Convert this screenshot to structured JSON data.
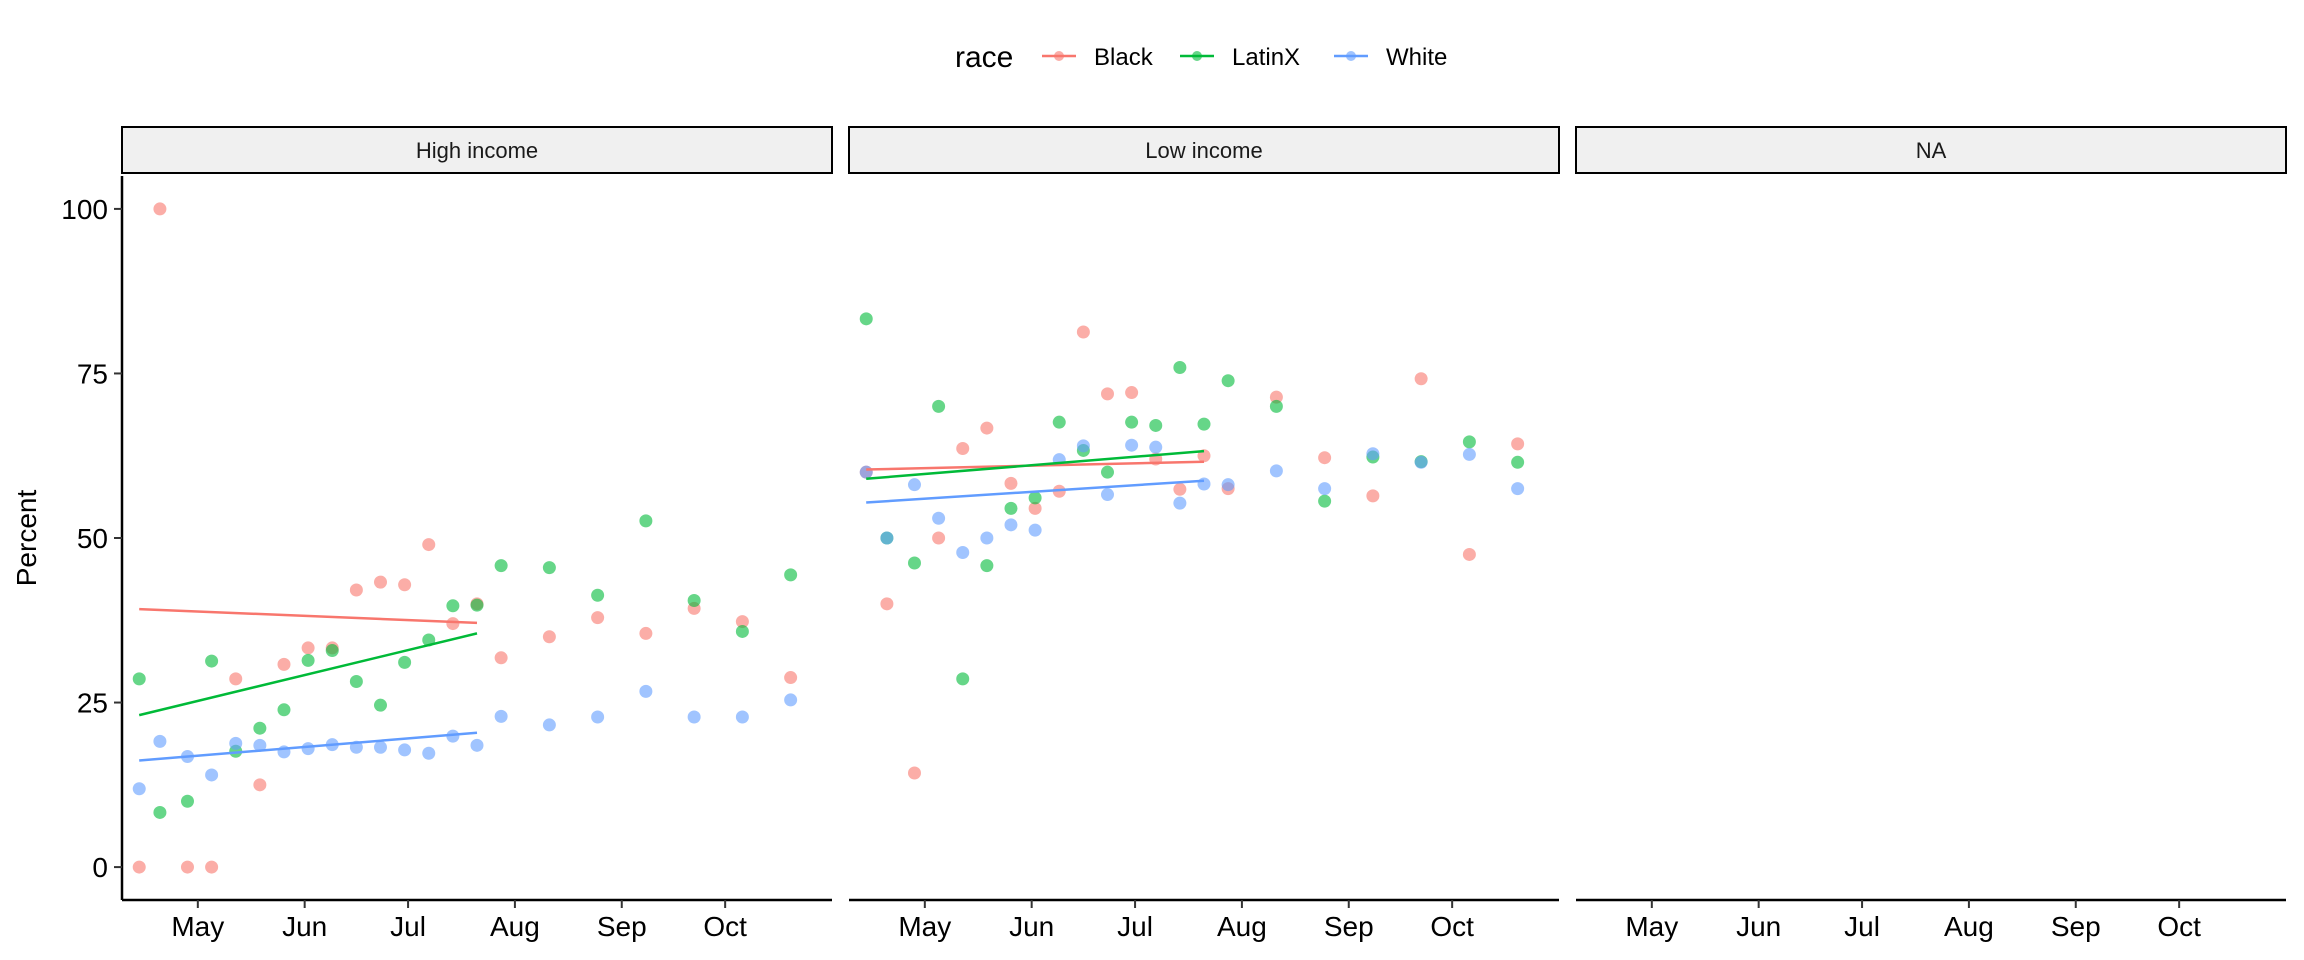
{
  "chart_data": {
    "type": "scatter",
    "legend": {
      "title": "race",
      "position": "top"
    },
    "y_label": "Percent",
    "y_ticks": [
      0,
      25,
      50,
      75,
      100
    ],
    "y_range": [
      -5,
      105
    ],
    "x_ticks": [
      "May",
      "Jun",
      "Jul",
      "Aug",
      "Sep",
      "Oct"
    ],
    "x_tick_dates": [
      "2020-05-01",
      "2020-06-01",
      "2020-07-01",
      "2020-08-01",
      "2020-09-01",
      "2020-10-01"
    ],
    "x_range": [
      "2020-04-09",
      "2020-11-01"
    ],
    "grid": false,
    "series": [
      {
        "name": "Black",
        "color": "#F8766D"
      },
      {
        "name": "LatinX",
        "color": "#00BA38"
      },
      {
        "name": "White",
        "color": "#619CFF"
      }
    ],
    "panels": [
      {
        "label": "High income",
        "points": {
          "Black": [
            {
              "x": "2020-04-14",
              "y": 0
            },
            {
              "x": "2020-04-20",
              "y": 100
            },
            {
              "x": "2020-04-28",
              "y": 0
            },
            {
              "x": "2020-05-05",
              "y": 0
            },
            {
              "x": "2020-05-12",
              "y": 28.6
            },
            {
              "x": "2020-05-19",
              "y": 12.5
            },
            {
              "x": "2020-05-26",
              "y": 30.8
            },
            {
              "x": "2020-06-02",
              "y": 33.3
            },
            {
              "x": "2020-06-09",
              "y": 33.3
            },
            {
              "x": "2020-06-16",
              "y": 42.1
            },
            {
              "x": "2020-06-23",
              "y": 43.3
            },
            {
              "x": "2020-06-30",
              "y": 42.9
            },
            {
              "x": "2020-07-07",
              "y": 49.0
            },
            {
              "x": "2020-07-14",
              "y": 37.0
            },
            {
              "x": "2020-07-21",
              "y": 40.0
            },
            {
              "x": "2020-07-28",
              "y": 31.8
            },
            {
              "x": "2020-08-11",
              "y": 35.0
            },
            {
              "x": "2020-08-25",
              "y": 37.9
            },
            {
              "x": "2020-09-08",
              "y": 35.5
            },
            {
              "x": "2020-09-22",
              "y": 39.3
            },
            {
              "x": "2020-10-06",
              "y": 37.3
            },
            {
              "x": "2020-10-20",
              "y": 28.8
            }
          ],
          "LatinX": [
            {
              "x": "2020-04-14",
              "y": 28.6
            },
            {
              "x": "2020-04-20",
              "y": 8.3
            },
            {
              "x": "2020-04-28",
              "y": 10.0
            },
            {
              "x": "2020-05-05",
              "y": 31.3
            },
            {
              "x": "2020-05-12",
              "y": 17.6
            },
            {
              "x": "2020-05-19",
              "y": 21.1
            },
            {
              "x": "2020-05-26",
              "y": 23.9
            },
            {
              "x": "2020-06-02",
              "y": 31.4
            },
            {
              "x": "2020-06-09",
              "y": 32.9
            },
            {
              "x": "2020-06-16",
              "y": 28.2
            },
            {
              "x": "2020-06-23",
              "y": 24.6
            },
            {
              "x": "2020-06-30",
              "y": 31.1
            },
            {
              "x": "2020-07-07",
              "y": 34.5
            },
            {
              "x": "2020-07-14",
              "y": 39.7
            },
            {
              "x": "2020-07-21",
              "y": 39.8
            },
            {
              "x": "2020-07-28",
              "y": 45.8
            },
            {
              "x": "2020-08-11",
              "y": 45.5
            },
            {
              "x": "2020-08-25",
              "y": 41.3
            },
            {
              "x": "2020-09-08",
              "y": 52.6
            },
            {
              "x": "2020-09-22",
              "y": 40.5
            },
            {
              "x": "2020-10-06",
              "y": 35.8
            },
            {
              "x": "2020-10-20",
              "y": 44.4
            }
          ],
          "White": [
            {
              "x": "2020-04-14",
              "y": 11.9
            },
            {
              "x": "2020-04-20",
              "y": 19.1
            },
            {
              "x": "2020-04-28",
              "y": 16.8
            },
            {
              "x": "2020-05-05",
              "y": 14.0
            },
            {
              "x": "2020-05-12",
              "y": 18.8
            },
            {
              "x": "2020-05-19",
              "y": 18.5
            },
            {
              "x": "2020-05-26",
              "y": 17.5
            },
            {
              "x": "2020-06-02",
              "y": 18.0
            },
            {
              "x": "2020-06-09",
              "y": 18.6
            },
            {
              "x": "2020-06-16",
              "y": 18.2
            },
            {
              "x": "2020-06-23",
              "y": 18.2
            },
            {
              "x": "2020-06-30",
              "y": 17.8
            },
            {
              "x": "2020-07-07",
              "y": 17.3
            },
            {
              "x": "2020-07-14",
              "y": 19.9
            },
            {
              "x": "2020-07-21",
              "y": 18.5
            },
            {
              "x": "2020-07-28",
              "y": 22.9
            },
            {
              "x": "2020-08-11",
              "y": 21.6
            },
            {
              "x": "2020-08-25",
              "y": 22.8
            },
            {
              "x": "2020-09-08",
              "y": 26.7
            },
            {
              "x": "2020-09-22",
              "y": 22.8
            },
            {
              "x": "2020-10-06",
              "y": 22.8
            },
            {
              "x": "2020-10-20",
              "y": 25.4
            }
          ]
        },
        "trend_lines": {
          "Black": [
            {
              "x": "2020-04-14",
              "y": 39.2
            },
            {
              "x": "2020-07-21",
              "y": 37.1
            }
          ],
          "LatinX": [
            {
              "x": "2020-04-14",
              "y": 23.1
            },
            {
              "x": "2020-07-21",
              "y": 35.5
            }
          ],
          "White": [
            {
              "x": "2020-04-14",
              "y": 16.2
            },
            {
              "x": "2020-07-21",
              "y": 20.4
            }
          ]
        }
      },
      {
        "label": "Low income",
        "points": {
          "Black": [
            {
              "x": "2020-04-14",
              "y": 60.0
            },
            {
              "x": "2020-04-20",
              "y": 40.0
            },
            {
              "x": "2020-04-28",
              "y": 14.3
            },
            {
              "x": "2020-05-05",
              "y": 50.0
            },
            {
              "x": "2020-05-12",
              "y": 63.6
            },
            {
              "x": "2020-05-19",
              "y": 66.7
            },
            {
              "x": "2020-05-26",
              "y": 58.3
            },
            {
              "x": "2020-06-02",
              "y": 54.5
            },
            {
              "x": "2020-06-09",
              "y": 57.1
            },
            {
              "x": "2020-06-16",
              "y": 81.3
            },
            {
              "x": "2020-06-23",
              "y": 71.9
            },
            {
              "x": "2020-06-30",
              "y": 72.1
            },
            {
              "x": "2020-07-07",
              "y": 62.0
            },
            {
              "x": "2020-07-14",
              "y": 57.4
            },
            {
              "x": "2020-07-21",
              "y": 62.5
            },
            {
              "x": "2020-07-28",
              "y": 57.5
            },
            {
              "x": "2020-08-11",
              "y": 71.4
            },
            {
              "x": "2020-08-25",
              "y": 62.2
            },
            {
              "x": "2020-09-08",
              "y": 56.4
            },
            {
              "x": "2020-09-22",
              "y": 74.2
            },
            {
              "x": "2020-10-06",
              "y": 47.5
            },
            {
              "x": "2020-10-20",
              "y": 64.3
            }
          ],
          "LatinX": [
            {
              "x": "2020-04-14",
              "y": 83.3
            },
            {
              "x": "2020-04-20",
              "y": 50.0
            },
            {
              "x": "2020-04-28",
              "y": 46.2
            },
            {
              "x": "2020-05-05",
              "y": 70.0
            },
            {
              "x": "2020-05-12",
              "y": 28.6
            },
            {
              "x": "2020-05-19",
              "y": 45.8
            },
            {
              "x": "2020-05-26",
              "y": 54.5
            },
            {
              "x": "2020-06-02",
              "y": 56.1
            },
            {
              "x": "2020-06-09",
              "y": 67.6
            },
            {
              "x": "2020-06-16",
              "y": 63.3
            },
            {
              "x": "2020-06-23",
              "y": 60.0
            },
            {
              "x": "2020-06-30",
              "y": 67.6
            },
            {
              "x": "2020-07-07",
              "y": 67.1
            },
            {
              "x": "2020-07-14",
              "y": 75.9
            },
            {
              "x": "2020-07-21",
              "y": 67.3
            },
            {
              "x": "2020-07-28",
              "y": 73.9
            },
            {
              "x": "2020-08-11",
              "y": 70.0
            },
            {
              "x": "2020-08-25",
              "y": 55.6
            },
            {
              "x": "2020-09-08",
              "y": 62.3
            },
            {
              "x": "2020-09-22",
              "y": 61.6
            },
            {
              "x": "2020-10-06",
              "y": 64.6
            },
            {
              "x": "2020-10-20",
              "y": 61.5
            }
          ],
          "White": [
            {
              "x": "2020-04-14",
              "y": 60.0
            },
            {
              "x": "2020-04-20",
              "y": 50.0
            },
            {
              "x": "2020-04-28",
              "y": 58.1
            },
            {
              "x": "2020-05-05",
              "y": 53.0
            },
            {
              "x": "2020-05-12",
              "y": 47.8
            },
            {
              "x": "2020-05-19",
              "y": 50.0
            },
            {
              "x": "2020-05-26",
              "y": 52.0
            },
            {
              "x": "2020-06-02",
              "y": 51.2
            },
            {
              "x": "2020-06-09",
              "y": 61.9
            },
            {
              "x": "2020-06-16",
              "y": 64.0
            },
            {
              "x": "2020-06-23",
              "y": 56.6
            },
            {
              "x": "2020-06-30",
              "y": 64.1
            },
            {
              "x": "2020-07-07",
              "y": 63.8
            },
            {
              "x": "2020-07-14",
              "y": 55.3
            },
            {
              "x": "2020-07-21",
              "y": 58.2
            },
            {
              "x": "2020-07-28",
              "y": 58.1
            },
            {
              "x": "2020-08-11",
              "y": 60.2
            },
            {
              "x": "2020-08-25",
              "y": 57.5
            },
            {
              "x": "2020-09-08",
              "y": 62.8
            },
            {
              "x": "2020-09-22",
              "y": 61.5
            },
            {
              "x": "2020-10-06",
              "y": 62.7
            },
            {
              "x": "2020-10-20",
              "y": 57.5
            }
          ]
        },
        "trend_lines": {
          "Black": [
            {
              "x": "2020-04-14",
              "y": 60.4
            },
            {
              "x": "2020-07-21",
              "y": 61.6
            }
          ],
          "LatinX": [
            {
              "x": "2020-04-14",
              "y": 59.0
            },
            {
              "x": "2020-07-21",
              "y": 63.2
            }
          ],
          "White": [
            {
              "x": "2020-04-14",
              "y": 55.4
            },
            {
              "x": "2020-07-21",
              "y": 58.7
            }
          ]
        }
      },
      {
        "label": "NA",
        "points": {
          "Black": [],
          "LatinX": [],
          "White": []
        },
        "trend_lines": {}
      }
    ]
  }
}
